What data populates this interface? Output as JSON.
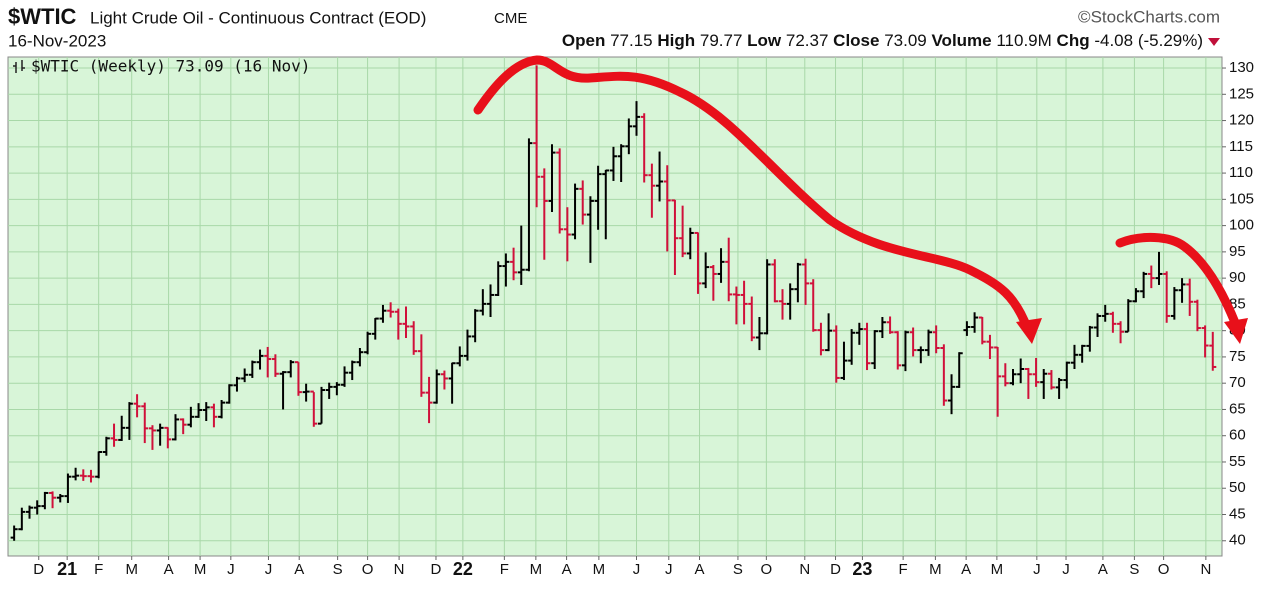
{
  "chart_data": {
    "type": "ohlc",
    "symbol": "$WTIC",
    "title": "Light Crude Oil - Continuous Contract (EOD)",
    "exchange": "CME",
    "source": "©StockCharts.com",
    "date": "16-Nov-2023",
    "quote": {
      "open_label": "Open",
      "open": 77.15,
      "high_label": "High",
      "high": 79.77,
      "low_label": "Low",
      "low": 72.37,
      "close_label": "Close",
      "close": 73.09,
      "volume_label": "Volume",
      "volume": {
        "value": 110900000,
        "label": "110.9M"
      },
      "change_label": "Chg",
      "change": -4.08,
      "change_pct": {
        "value": -5.29,
        "label": "(-5.29%)"
      }
    },
    "legend": "$WTIC (Weekly) 73.09 (16 Nov)",
    "up_color": "#000000",
    "down_color": "#d0103a",
    "background": "#d8f5d8",
    "grid": true,
    "ylim": [
      37.1,
      132.1
    ],
    "yticks": [
      40,
      45,
      50,
      55,
      60,
      65,
      70,
      75,
      80,
      85,
      90,
      95,
      100,
      105,
      110,
      115,
      120,
      125,
      130
    ],
    "xlim": [
      -0.8,
      157.2
    ],
    "xticks": [
      {
        "value": 3.2,
        "label": "D"
      },
      {
        "value": 6.9,
        "label": "21",
        "bold": true
      },
      {
        "value": 11.0,
        "label": "F"
      },
      {
        "value": 15.3,
        "label": "M"
      },
      {
        "value": 20.1,
        "label": "A"
      },
      {
        "value": 24.2,
        "label": "M"
      },
      {
        "value": 28.2,
        "label": "J"
      },
      {
        "value": 33.1,
        "label": "J"
      },
      {
        "value": 37.1,
        "label": "A"
      },
      {
        "value": 42.1,
        "label": "S"
      },
      {
        "value": 46.0,
        "label": "O"
      },
      {
        "value": 50.1,
        "label": "N"
      },
      {
        "value": 54.9,
        "label": "D"
      },
      {
        "value": 58.4,
        "label": "22",
        "bold": true
      },
      {
        "value": 63.8,
        "label": "F"
      },
      {
        "value": 67.9,
        "label": "M"
      },
      {
        "value": 71.9,
        "label": "A"
      },
      {
        "value": 76.1,
        "label": "M"
      },
      {
        "value": 81.0,
        "label": "J"
      },
      {
        "value": 85.2,
        "label": "J"
      },
      {
        "value": 89.2,
        "label": "A"
      },
      {
        "value": 94.2,
        "label": "S"
      },
      {
        "value": 97.9,
        "label": "O"
      },
      {
        "value": 102.9,
        "label": "N"
      },
      {
        "value": 106.9,
        "label": "D"
      },
      {
        "value": 110.4,
        "label": "23",
        "bold": true
      },
      {
        "value": 115.7,
        "label": "F"
      },
      {
        "value": 119.9,
        "label": "M"
      },
      {
        "value": 123.9,
        "label": "A"
      },
      {
        "value": 127.9,
        "label": "M"
      },
      {
        "value": 133.1,
        "label": "J"
      },
      {
        "value": 136.9,
        "label": "J"
      },
      {
        "value": 141.7,
        "label": "A"
      },
      {
        "value": 145.8,
        "label": "S"
      },
      {
        "value": 149.6,
        "label": "O"
      },
      {
        "value": 155.1,
        "label": "N"
      }
    ],
    "open": [
      40.6,
      42.2,
      45.5,
      46.3,
      46.6,
      49.1,
      48.2,
      48.5,
      52.2,
      52.4,
      52.3,
      52.2,
      56.9,
      59.5,
      59.2,
      61.5,
      66.1,
      65.6,
      61.4,
      61.0,
      61.5,
      59.3,
      63.1,
      62.1,
      63.6,
      64.9,
      65.4,
      63.6,
      66.3,
      69.6,
      70.9,
      71.6,
      74.0,
      75.2,
      74.6,
      71.8,
      72.1,
      74.0,
      68.3,
      68.4,
      62.3,
      68.7,
      69.3,
      69.7,
      72.0,
      74.0,
      75.9,
      79.4,
      82.3,
      83.8,
      83.6,
      81.3,
      80.8,
      76.1,
      68.2,
      66.3,
      71.7,
      70.9,
      73.8,
      75.2,
      78.9,
      83.8,
      85.1,
      86.8,
      92.3,
      93.1,
      91.1,
      91.6,
      115.7,
      109.3,
      104.7,
      113.9,
      99.3,
      98.3,
      107.0,
      102.1,
      104.7,
      109.8,
      110.5,
      113.2,
      115.1,
      118.9,
      120.7,
      109.6,
      107.6,
      108.4,
      104.8,
      97.6,
      94.7,
      98.6,
      89.0,
      92.1,
      90.8,
      93.1,
      86.9,
      86.8,
      85.1,
      78.7,
      79.5,
      92.6,
      85.6,
      85.1,
      87.9,
      92.6,
      89.0,
      80.1,
      76.3,
      80.0,
      71.0,
      74.3,
      79.6,
      80.3,
      73.8,
      79.9,
      81.6,
      79.7,
      73.4,
      79.7,
      76.3,
      76.3,
      79.7,
      76.7,
      66.7,
      69.3,
      80.1,
      80.7,
      82.5,
      77.9,
      76.8,
      71.3,
      70.0,
      71.7,
      72.7,
      71.7,
      70.2,
      71.8,
      69.2,
      70.6,
      73.9,
      75.4,
      77.1,
      80.6,
      82.8,
      83.2,
      81.3,
      79.8,
      85.6,
      87.5,
      90.8,
      90.0,
      90.8,
      82.8,
      87.7,
      88.8,
      85.5,
      80.5,
      77.15
    ],
    "high": [
      42.9,
      46.3,
      46.7,
      47.7,
      49.3,
      49.4,
      48.9,
      52.8,
      53.9,
      53.6,
      53.5,
      57.0,
      59.8,
      62.3,
      63.8,
      66.4,
      67.9,
      66.3,
      62.0,
      62.3,
      61.6,
      64.1,
      63.3,
      65.5,
      66.2,
      66.4,
      66.1,
      66.8,
      69.8,
      71.2,
      72.8,
      74.3,
      76.4,
      76.9,
      75.5,
      72.3,
      74.4,
      74.0,
      69.9,
      68.3,
      69.3,
      70.1,
      70.2,
      73.2,
      74.3,
      76.7,
      79.8,
      82.4,
      84.9,
      85.4,
      84.2,
      84.6,
      81.8,
      79.3,
      71.2,
      72.6,
      72.4,
      73.9,
      77.0,
      80.2,
      84.1,
      87.9,
      88.8,
      93.2,
      94.7,
      95.8,
      100.0,
      116.6,
      130.5,
      110.9,
      115.5,
      114.7,
      103.5,
      108.0,
      108.6,
      105.6,
      111.4,
      110.6,
      115.0,
      115.5,
      120.4,
      123.7,
      121.4,
      111.8,
      114.1,
      111.5,
      104.9,
      103.8,
      99.6,
      98.7,
      94.9,
      92.5,
      95.7,
      97.7,
      88.4,
      89.5,
      86.5,
      82.6,
      93.6,
      93.6,
      87.9,
      89.0,
      92.9,
      93.7,
      89.8,
      81.5,
      83.3,
      81.0,
      77.9,
      80.3,
      81.5,
      81.5,
      80.1,
      82.6,
      82.7,
      79.9,
      80.0,
      80.6,
      77.0,
      80.2,
      81.0,
      77.4,
      71.7,
      75.9,
      81.8,
      83.5,
      82.6,
      79.2,
      76.9,
      73.8,
      72.7,
      74.7,
      72.9,
      74.8,
      72.7,
      72.5,
      71.0,
      74.1,
      77.3,
      77.3,
      80.9,
      83.3,
      84.9,
      83.6,
      81.8,
      86.0,
      88.1,
      91.2,
      92.4,
      95.0,
      91.3,
      88.3,
      90.0,
      89.9,
      85.9,
      81.0,
      79.77
    ],
    "low": [
      40.0,
      42.0,
      44.2,
      45.0,
      46.0,
      46.2,
      47.3,
      47.2,
      51.5,
      51.4,
      51.1,
      51.9,
      56.2,
      57.9,
      59.0,
      59.2,
      63.5,
      58.6,
      57.3,
      58.1,
      57.6,
      59.1,
      60.3,
      61.6,
      63.4,
      62.8,
      61.6,
      63.3,
      66.1,
      68.4,
      70.2,
      71.0,
      72.6,
      71.1,
      71.2,
      65.0,
      71.1,
      67.6,
      66.5,
      61.7,
      62.3,
      67.0,
      67.7,
      69.3,
      70.6,
      73.2,
      75.5,
      78.3,
      81.5,
      82.5,
      78.3,
      78.6,
      75.4,
      67.4,
      62.4,
      66.1,
      68.8,
      66.1,
      73.2,
      74.3,
      77.8,
      82.9,
      82.6,
      86.6,
      88.4,
      89.6,
      88.7,
      91.3,
      103.5,
      93.5,
      102.6,
      98.5,
      93.2,
      97.4,
      100.2,
      92.9,
      99.2,
      97.4,
      108.5,
      108.3,
      113.6,
      117.1,
      108.2,
      101.5,
      104.6,
      95.1,
      90.6,
      94.0,
      93.6,
      87.0,
      88.1,
      85.7,
      89.1,
      85.6,
      81.2,
      81.2,
      78.0,
      76.3,
      79.3,
      85.4,
      82.1,
      82.1,
      85.4,
      84.9,
      79.8,
      75.3,
      76.1,
      70.1,
      70.6,
      73.5,
      77.3,
      72.5,
      72.7,
      78.6,
      79.4,
      72.6,
      72.3,
      75.1,
      73.8,
      75.2,
      75.7,
      65.7,
      64.1,
      69.1,
      79.0,
      79.6,
      77.4,
      74.6,
      63.6,
      69.4,
      69.6,
      70.0,
      67.0,
      69.3,
      67.0,
      68.8,
      67.0,
      69.0,
      72.7,
      73.9,
      76.0,
      78.8,
      81.7,
      79.6,
      77.6,
      79.8,
      85.4,
      86.2,
      88.1,
      88.7,
      81.5,
      82.1,
      85.3,
      82.8,
      79.9,
      74.9,
      72.37
    ],
    "close": [
      42.2,
      45.5,
      46.3,
      46.6,
      49.1,
      48.2,
      48.5,
      52.2,
      52.4,
      52.3,
      52.2,
      56.9,
      59.5,
      59.2,
      61.5,
      66.1,
      65.6,
      61.4,
      61.0,
      61.5,
      59.3,
      63.1,
      62.1,
      63.6,
      64.9,
      65.4,
      63.6,
      66.3,
      69.6,
      70.9,
      71.6,
      74.0,
      75.2,
      74.6,
      71.8,
      72.1,
      74.0,
      68.3,
      68.4,
      62.3,
      68.7,
      69.3,
      69.7,
      72.0,
      74.0,
      75.9,
      79.4,
      82.3,
      83.8,
      83.6,
      81.3,
      80.8,
      76.1,
      68.2,
      66.3,
      71.7,
      70.9,
      73.8,
      75.2,
      78.9,
      83.8,
      85.1,
      86.8,
      92.3,
      93.1,
      91.1,
      91.6,
      115.7,
      109.3,
      104.7,
      113.9,
      99.3,
      98.3,
      107.0,
      102.1,
      104.7,
      109.8,
      110.5,
      113.2,
      115.1,
      118.9,
      120.7,
      109.6,
      107.6,
      108.4,
      104.8,
      97.6,
      94.7,
      98.6,
      89.0,
      92.1,
      90.8,
      93.1,
      86.9,
      86.8,
      85.1,
      78.7,
      79.5,
      92.6,
      85.6,
      85.1,
      87.9,
      92.6,
      89.0,
      80.1,
      76.3,
      80.0,
      71.0,
      74.3,
      79.6,
      80.3,
      73.8,
      79.9,
      81.6,
      79.7,
      73.4,
      79.7,
      76.3,
      76.3,
      79.7,
      76.7,
      66.7,
      69.3,
      75.7,
      80.7,
      82.5,
      77.9,
      76.8,
      71.3,
      70.0,
      71.7,
      72.7,
      71.7,
      70.2,
      71.8,
      69.2,
      70.6,
      73.9,
      75.4,
      77.1,
      80.6,
      82.8,
      83.2,
      81.3,
      79.8,
      85.6,
      87.5,
      90.8,
      90.0,
      90.8,
      82.8,
      87.7,
      88.8,
      85.5,
      80.5,
      77.17,
      73.09
    ]
  }
}
